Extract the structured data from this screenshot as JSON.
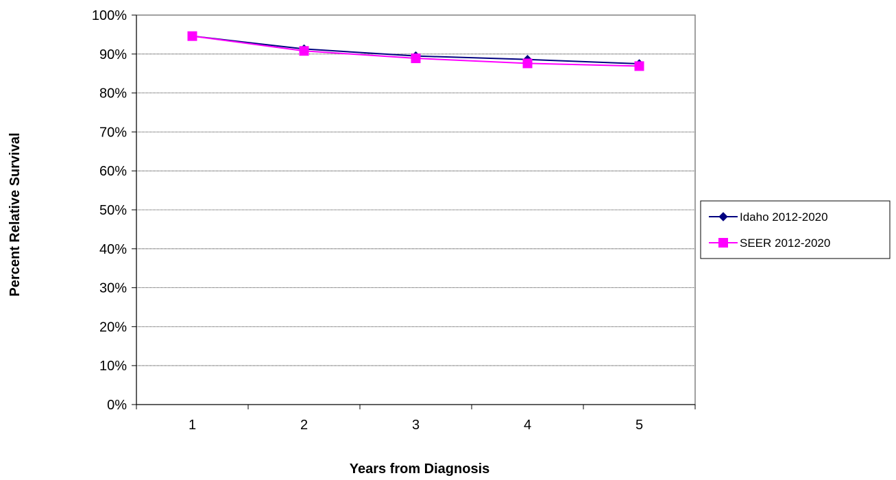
{
  "chart_data": {
    "type": "line",
    "title": "",
    "xlabel": "Years from Diagnosis",
    "ylabel": "Percent Relative Survival",
    "categories": [
      "1",
      "2",
      "3",
      "4",
      "5"
    ],
    "y_ticks": [
      "0%",
      "10%",
      "20%",
      "30%",
      "40%",
      "50%",
      "60%",
      "70%",
      "80%",
      "90%",
      "100%"
    ],
    "ylim": [
      0,
      100
    ],
    "grid": true,
    "legend_position": "right",
    "series": [
      {
        "name": "Idaho 2012-2020",
        "values": [
          94.6,
          91.3,
          89.5,
          88.6,
          87.5
        ],
        "color": "#000080",
        "marker": "diamond"
      },
      {
        "name": "SEER 2012-2020",
        "values": [
          94.6,
          90.8,
          88.9,
          87.6,
          86.9
        ],
        "color": "#ff00ff",
        "marker": "square"
      }
    ]
  }
}
